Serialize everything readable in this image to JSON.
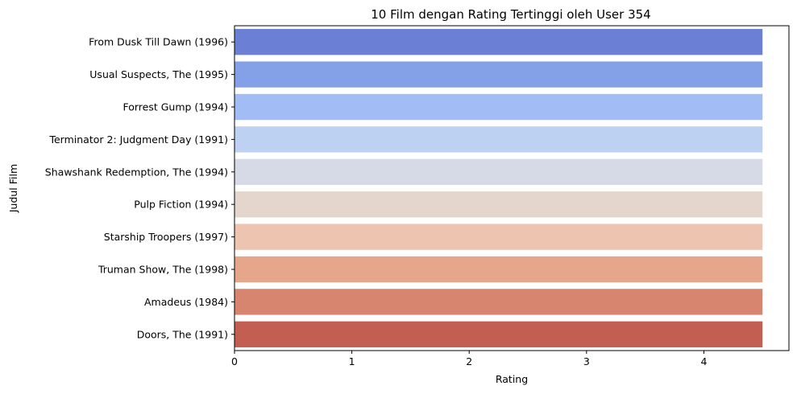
{
  "chart_data": {
    "type": "bar",
    "orientation": "horizontal",
    "title": "10 Film dengan Rating Tertinggi oleh User 354",
    "xlabel": "Rating",
    "ylabel": "Judul Film",
    "xlim": [
      0,
      4.725
    ],
    "xticks": [
      "0",
      "1",
      "2",
      "3",
      "4"
    ],
    "grid": false,
    "categories": [
      "From Dusk Till Dawn (1996)",
      "Usual Suspects, The (1995)",
      "Forrest Gump (1994)",
      "Terminator 2: Judgment Day (1991)",
      "Shawshank Redemption, The (1994)",
      "Pulp Fiction (1994)",
      "Starship Troopers (1997)",
      "Truman Show, The (1998)",
      "Amadeus (1984)",
      "Doors, The (1991)"
    ],
    "values": [
      4.5,
      4.5,
      4.5,
      4.5,
      4.5,
      4.5,
      4.5,
      4.5,
      4.5,
      4.5
    ],
    "colors": [
      "#6b7fd5",
      "#84a1e7",
      "#a2bcf5",
      "#bdd1f3",
      "#d5dae6",
      "#e5d6cd",
      "#ecc4af",
      "#e6a68c",
      "#d8856f",
      "#c35e52"
    ]
  }
}
